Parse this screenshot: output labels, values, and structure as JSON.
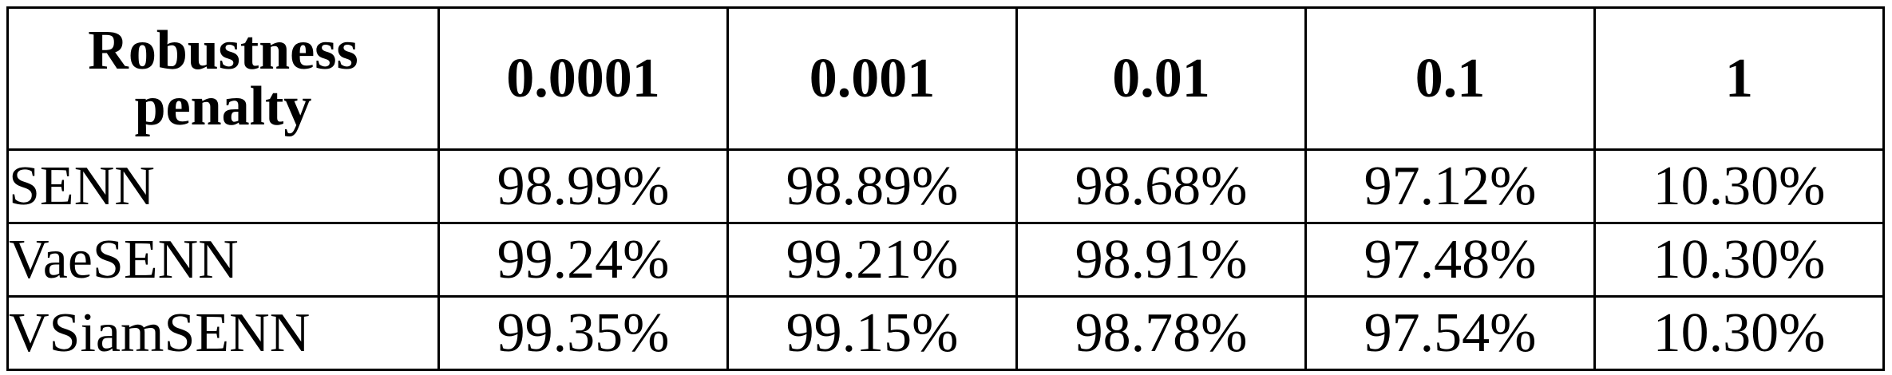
{
  "table": {
    "header": {
      "corner_label": "Robustness penalty",
      "columns": [
        "0.0001",
        "0.001",
        "0.01",
        "0.1",
        "1"
      ]
    },
    "rows": [
      {
        "label": "SENN",
        "values": [
          "98.99%",
          "98.89%",
          "98.68%",
          "97.12%",
          "10.30%"
        ]
      },
      {
        "label": "VaeSENN",
        "values": [
          "99.24%",
          "99.21%",
          "98.91%",
          "97.48%",
          "10.30%"
        ]
      },
      {
        "label": "VSiamSENN",
        "values": [
          "99.35%",
          "99.15%",
          "98.78%",
          "97.54%",
          "10.30%"
        ]
      }
    ]
  }
}
